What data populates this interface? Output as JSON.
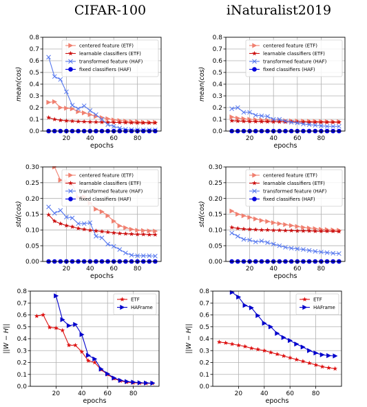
{
  "columns": [
    "CIFAR-100",
    "iNaturalist2019"
  ],
  "chart_data": [
    {
      "type": "line",
      "xlabel": "epochs",
      "ylabel": "mean(cos)",
      "xlim": [
        0,
        100
      ],
      "ylim": [
        0,
        0.8
      ],
      "xticks": [
        20,
        40,
        60,
        80
      ],
      "yticks": [
        0.0,
        0.1,
        0.2,
        0.3,
        0.4,
        0.5,
        0.6,
        0.7,
        0.8
      ],
      "grid": true,
      "legend": "top-right",
      "series": [
        {
          "name": "centered feature (ETF)",
          "color": "#f08070",
          "marker": "triangle-right",
          "x": [
            5,
            10,
            15,
            20,
            25,
            30,
            35,
            40,
            45,
            50,
            55,
            60,
            65,
            70,
            75,
            80,
            85,
            90,
            95
          ],
          "y": [
            0.245,
            0.25,
            0.2,
            0.195,
            0.19,
            0.165,
            0.155,
            0.14,
            0.125,
            0.115,
            0.105,
            0.095,
            0.09,
            0.085,
            0.08,
            0.08,
            0.075,
            0.075,
            0.075
          ]
        },
        {
          "name": "learnable classifiers (ETF)",
          "color": "#cc1111",
          "marker": "star",
          "x": [
            5,
            10,
            15,
            20,
            25,
            30,
            35,
            40,
            45,
            50,
            55,
            60,
            65,
            70,
            75,
            80,
            85,
            90,
            95
          ],
          "y": [
            0.115,
            0.1,
            0.092,
            0.088,
            0.085,
            0.082,
            0.08,
            0.078,
            0.077,
            0.076,
            0.075,
            0.074,
            0.073,
            0.072,
            0.071,
            0.07,
            0.07,
            0.07,
            0.07
          ]
        },
        {
          "name": "transformed feature (HAF)",
          "color": "#5577ee",
          "marker": "x",
          "x": [
            5,
            10,
            15,
            20,
            25,
            30,
            35,
            40,
            45,
            50,
            55,
            60,
            65,
            70,
            75,
            80,
            85,
            90,
            95
          ],
          "y": [
            0.63,
            0.465,
            0.44,
            0.335,
            0.22,
            0.19,
            0.215,
            0.175,
            0.14,
            0.1,
            0.055,
            0.04,
            0.025,
            0.015,
            0.012,
            0.01,
            0.01,
            0.01,
            0.01
          ]
        },
        {
          "name": "fixed classifiers (HAF)",
          "color": "#0000dd",
          "marker": "circle",
          "x": [
            5,
            10,
            15,
            20,
            25,
            30,
            35,
            40,
            45,
            50,
            55,
            60,
            65,
            70,
            75,
            80,
            85,
            90,
            95
          ],
          "y": [
            0,
            0,
            0,
            0,
            0,
            0,
            0,
            0,
            0,
            0,
            0,
            0,
            0,
            0,
            0,
            0,
            0,
            0,
            0
          ]
        }
      ]
    },
    {
      "type": "line",
      "xlabel": "epochs",
      "ylabel": "mean(cos)",
      "xlim": [
        0,
        100
      ],
      "ylim": [
        0,
        0.8
      ],
      "xticks": [
        20,
        40,
        60,
        80
      ],
      "yticks": [
        0.0,
        0.1,
        0.2,
        0.3,
        0.4,
        0.5,
        0.6,
        0.7,
        0.8
      ],
      "grid": true,
      "legend": "top-right",
      "series": [
        {
          "name": "centered feature (ETF)",
          "color": "#f08070",
          "marker": "triangle-right",
          "x": [
            5,
            10,
            15,
            20,
            25,
            30,
            35,
            40,
            45,
            50,
            55,
            60,
            65,
            70,
            75,
            80,
            85,
            90,
            95
          ],
          "y": [
            0.12,
            0.11,
            0.105,
            0.1,
            0.097,
            0.095,
            0.093,
            0.091,
            0.09,
            0.088,
            0.087,
            0.086,
            0.085,
            0.084,
            0.083,
            0.082,
            0.081,
            0.08,
            0.08
          ]
        },
        {
          "name": "learnable classifiers (ETF)",
          "color": "#cc1111",
          "marker": "star",
          "x": [
            5,
            10,
            15,
            20,
            25,
            30,
            35,
            40,
            45,
            50,
            55,
            60,
            65,
            70,
            75,
            80,
            85,
            90,
            95
          ],
          "y": [
            0.088,
            0.085,
            0.083,
            0.082,
            0.081,
            0.08,
            0.08,
            0.079,
            0.079,
            0.078,
            0.078,
            0.077,
            0.077,
            0.076,
            0.076,
            0.076,
            0.075,
            0.075,
            0.075
          ]
        },
        {
          "name": "transformed feature (HAF)",
          "color": "#5577ee",
          "marker": "x",
          "x": [
            5,
            10,
            15,
            20,
            25,
            30,
            35,
            40,
            45,
            50,
            55,
            60,
            65,
            70,
            75,
            80,
            85,
            90,
            95
          ],
          "y": [
            0.19,
            0.2,
            0.16,
            0.16,
            0.135,
            0.13,
            0.125,
            0.1,
            0.1,
            0.085,
            0.075,
            0.07,
            0.06,
            0.055,
            0.05,
            0.045,
            0.04,
            0.04,
            0.04
          ]
        },
        {
          "name": "fixed classifiers (HAF)",
          "color": "#0000dd",
          "marker": "circle",
          "x": [
            5,
            10,
            15,
            20,
            25,
            30,
            35,
            40,
            45,
            50,
            55,
            60,
            65,
            70,
            75,
            80,
            85,
            90,
            95
          ],
          "y": [
            0,
            0,
            0,
            0,
            0,
            0,
            0,
            0,
            0,
            0,
            0,
            0,
            0,
            0,
            0,
            0,
            0,
            0,
            0
          ]
        }
      ]
    },
    {
      "type": "line",
      "xlabel": "epochs",
      "ylabel": "std(cos)",
      "xlim": [
        0,
        100
      ],
      "ylim": [
        0,
        0.3
      ],
      "xticks": [
        20,
        40,
        60,
        80
      ],
      "yticks": [
        0.0,
        0.05,
        0.1,
        0.15,
        0.2,
        0.25,
        0.3
      ],
      "grid": true,
      "legend": "top-right",
      "series": [
        {
          "name": "centered feature (ETF)",
          "color": "#f08070",
          "marker": "triangle-right",
          "x": [
            10,
            15,
            20,
            25,
            30,
            35,
            40,
            45,
            50,
            55,
            60,
            65,
            70,
            75,
            80,
            85,
            90,
            95
          ],
          "y": [
            0.3,
            0.258,
            0.253,
            0.245,
            0.203,
            0.205,
            0.185,
            0.166,
            0.158,
            0.145,
            0.128,
            0.113,
            0.107,
            0.102,
            0.099,
            0.098,
            0.097,
            0.096
          ]
        },
        {
          "name": "learnable classifiers (ETF)",
          "color": "#cc1111",
          "marker": "star",
          "x": [
            5,
            10,
            15,
            20,
            25,
            30,
            35,
            40,
            45,
            50,
            55,
            60,
            65,
            70,
            75,
            80,
            85,
            90,
            95
          ],
          "y": [
            0.148,
            0.128,
            0.12,
            0.114,
            0.11,
            0.105,
            0.102,
            0.099,
            0.097,
            0.095,
            0.093,
            0.091,
            0.089,
            0.088,
            0.087,
            0.086,
            0.086,
            0.085,
            0.085
          ]
        },
        {
          "name": "transformed feature (HAF)",
          "color": "#5577ee",
          "marker": "x",
          "x": [
            5,
            10,
            15,
            20,
            25,
            30,
            35,
            40,
            45,
            50,
            55,
            60,
            65,
            70,
            75,
            80,
            85,
            90,
            95
          ],
          "y": [
            0.173,
            0.153,
            0.162,
            0.141,
            0.138,
            0.12,
            0.12,
            0.123,
            0.08,
            0.075,
            0.055,
            0.048,
            0.038,
            0.027,
            0.02,
            0.018,
            0.018,
            0.018,
            0.017
          ]
        },
        {
          "name": "fixed classifiers (HAF)",
          "color": "#0000dd",
          "marker": "circle",
          "x": [
            5,
            10,
            15,
            20,
            25,
            30,
            35,
            40,
            45,
            50,
            55,
            60,
            65,
            70,
            75,
            80,
            85,
            90,
            95
          ],
          "y": [
            0,
            0,
            0,
            0,
            0,
            0,
            0,
            0,
            0,
            0,
            0,
            0,
            0,
            0,
            0,
            0,
            0,
            0,
            0
          ]
        }
      ]
    },
    {
      "type": "line",
      "xlabel": "epochs",
      "ylabel": "std(cos)",
      "xlim": [
        0,
        100
      ],
      "ylim": [
        0,
        0.3
      ],
      "xticks": [
        20,
        40,
        60,
        80
      ],
      "yticks": [
        0.0,
        0.05,
        0.1,
        0.15,
        0.2,
        0.25,
        0.3
      ],
      "grid": true,
      "legend": "top-right",
      "series": [
        {
          "name": "centered feature (ETF)",
          "color": "#f08070",
          "marker": "triangle-right",
          "x": [
            5,
            10,
            15,
            20,
            25,
            30,
            35,
            40,
            45,
            50,
            55,
            60,
            65,
            70,
            75,
            80,
            85,
            90,
            95
          ],
          "y": [
            0.16,
            0.15,
            0.145,
            0.14,
            0.135,
            0.13,
            0.127,
            0.123,
            0.12,
            0.117,
            0.114,
            0.111,
            0.108,
            0.106,
            0.104,
            0.102,
            0.101,
            0.1,
            0.099
          ]
        },
        {
          "name": "learnable classifiers (ETF)",
          "color": "#cc1111",
          "marker": "star",
          "x": [
            5,
            10,
            15,
            20,
            25,
            30,
            35,
            40,
            45,
            50,
            55,
            60,
            65,
            70,
            75,
            80,
            85,
            90,
            95
          ],
          "y": [
            0.108,
            0.105,
            0.103,
            0.102,
            0.101,
            0.1,
            0.1,
            0.099,
            0.099,
            0.098,
            0.098,
            0.097,
            0.097,
            0.097,
            0.096,
            0.096,
            0.096,
            0.096,
            0.095
          ]
        },
        {
          "name": "transformed feature (HAF)",
          "color": "#5577ee",
          "marker": "x",
          "x": [
            5,
            10,
            15,
            20,
            25,
            30,
            35,
            40,
            45,
            50,
            55,
            60,
            65,
            70,
            75,
            80,
            85,
            90,
            95
          ],
          "y": [
            0.09,
            0.08,
            0.07,
            0.068,
            0.062,
            0.065,
            0.06,
            0.055,
            0.05,
            0.045,
            0.042,
            0.04,
            0.038,
            0.035,
            0.032,
            0.03,
            0.028,
            0.026,
            0.025
          ]
        },
        {
          "name": "fixed classifiers (HAF)",
          "color": "#0000dd",
          "marker": "circle",
          "x": [
            5,
            10,
            15,
            20,
            25,
            30,
            35,
            40,
            45,
            50,
            55,
            60,
            65,
            70,
            75,
            80,
            85,
            90,
            95
          ],
          "y": [
            0,
            0,
            0,
            0,
            0,
            0,
            0,
            0,
            0,
            0,
            0,
            0,
            0,
            0,
            0,
            0,
            0,
            0,
            0
          ]
        }
      ]
    },
    {
      "type": "line",
      "xlabel": "epochs",
      "ylabel": "||W − H||",
      "xlim": [
        0,
        100
      ],
      "ylim": [
        0,
        0.8
      ],
      "xticks": [
        20,
        40,
        60,
        80
      ],
      "yticks": [
        0.0,
        0.1,
        0.2,
        0.3,
        0.4,
        0.5,
        0.6,
        0.7,
        0.8
      ],
      "grid": true,
      "legend": "top-right",
      "series": [
        {
          "name": "ETF",
          "color": "#dd1111",
          "marker": "star",
          "x": [
            5,
            10,
            15,
            20,
            25,
            30,
            35,
            40,
            45,
            50,
            55,
            60,
            65,
            70,
            75,
            80,
            85,
            90,
            95
          ],
          "y": [
            0.59,
            0.6,
            0.495,
            0.49,
            0.47,
            0.345,
            0.345,
            0.29,
            0.215,
            0.2,
            0.14,
            0.1,
            0.065,
            0.045,
            0.035,
            0.03,
            0.027,
            0.025,
            0.025
          ]
        },
        {
          "name": "HAFrame",
          "color": "#0000cc",
          "marker": "triangle-right",
          "x": [
            20,
            25,
            30,
            35,
            40,
            45,
            50,
            55,
            60,
            65,
            70,
            75,
            80,
            85,
            90,
            95
          ],
          "y": [
            0.76,
            0.56,
            0.51,
            0.52,
            0.435,
            0.26,
            0.23,
            0.145,
            0.105,
            0.07,
            0.05,
            0.04,
            0.035,
            0.03,
            0.028,
            0.027
          ]
        }
      ]
    },
    {
      "type": "line",
      "xlabel": "epochs",
      "ylabel": "||W − H||",
      "xlim": [
        0,
        100
      ],
      "ylim": [
        0,
        0.8
      ],
      "xticks": [
        20,
        40,
        60,
        80
      ],
      "yticks": [
        0.0,
        0.1,
        0.2,
        0.3,
        0.4,
        0.5,
        0.6,
        0.7,
        0.8
      ],
      "grid": true,
      "legend": "top-right",
      "series": [
        {
          "name": "ETF",
          "color": "#dd1111",
          "marker": "star",
          "x": [
            5,
            10,
            15,
            20,
            25,
            30,
            35,
            40,
            45,
            50,
            55,
            60,
            65,
            70,
            75,
            80,
            85,
            90,
            95
          ],
          "y": [
            0.372,
            0.365,
            0.355,
            0.345,
            0.335,
            0.32,
            0.31,
            0.3,
            0.285,
            0.27,
            0.255,
            0.24,
            0.225,
            0.21,
            0.195,
            0.18,
            0.165,
            0.155,
            0.148
          ]
        },
        {
          "name": "HAFrame",
          "color": "#0000cc",
          "marker": "triangle-right",
          "x": [
            15,
            20,
            25,
            30,
            35,
            40,
            45,
            50,
            55,
            60,
            65,
            70,
            75,
            80,
            85,
            90,
            95
          ],
          "y": [
            0.79,
            0.75,
            0.68,
            0.66,
            0.595,
            0.53,
            0.5,
            0.445,
            0.41,
            0.385,
            0.355,
            0.33,
            0.3,
            0.28,
            0.265,
            0.258,
            0.255
          ]
        }
      ]
    }
  ]
}
